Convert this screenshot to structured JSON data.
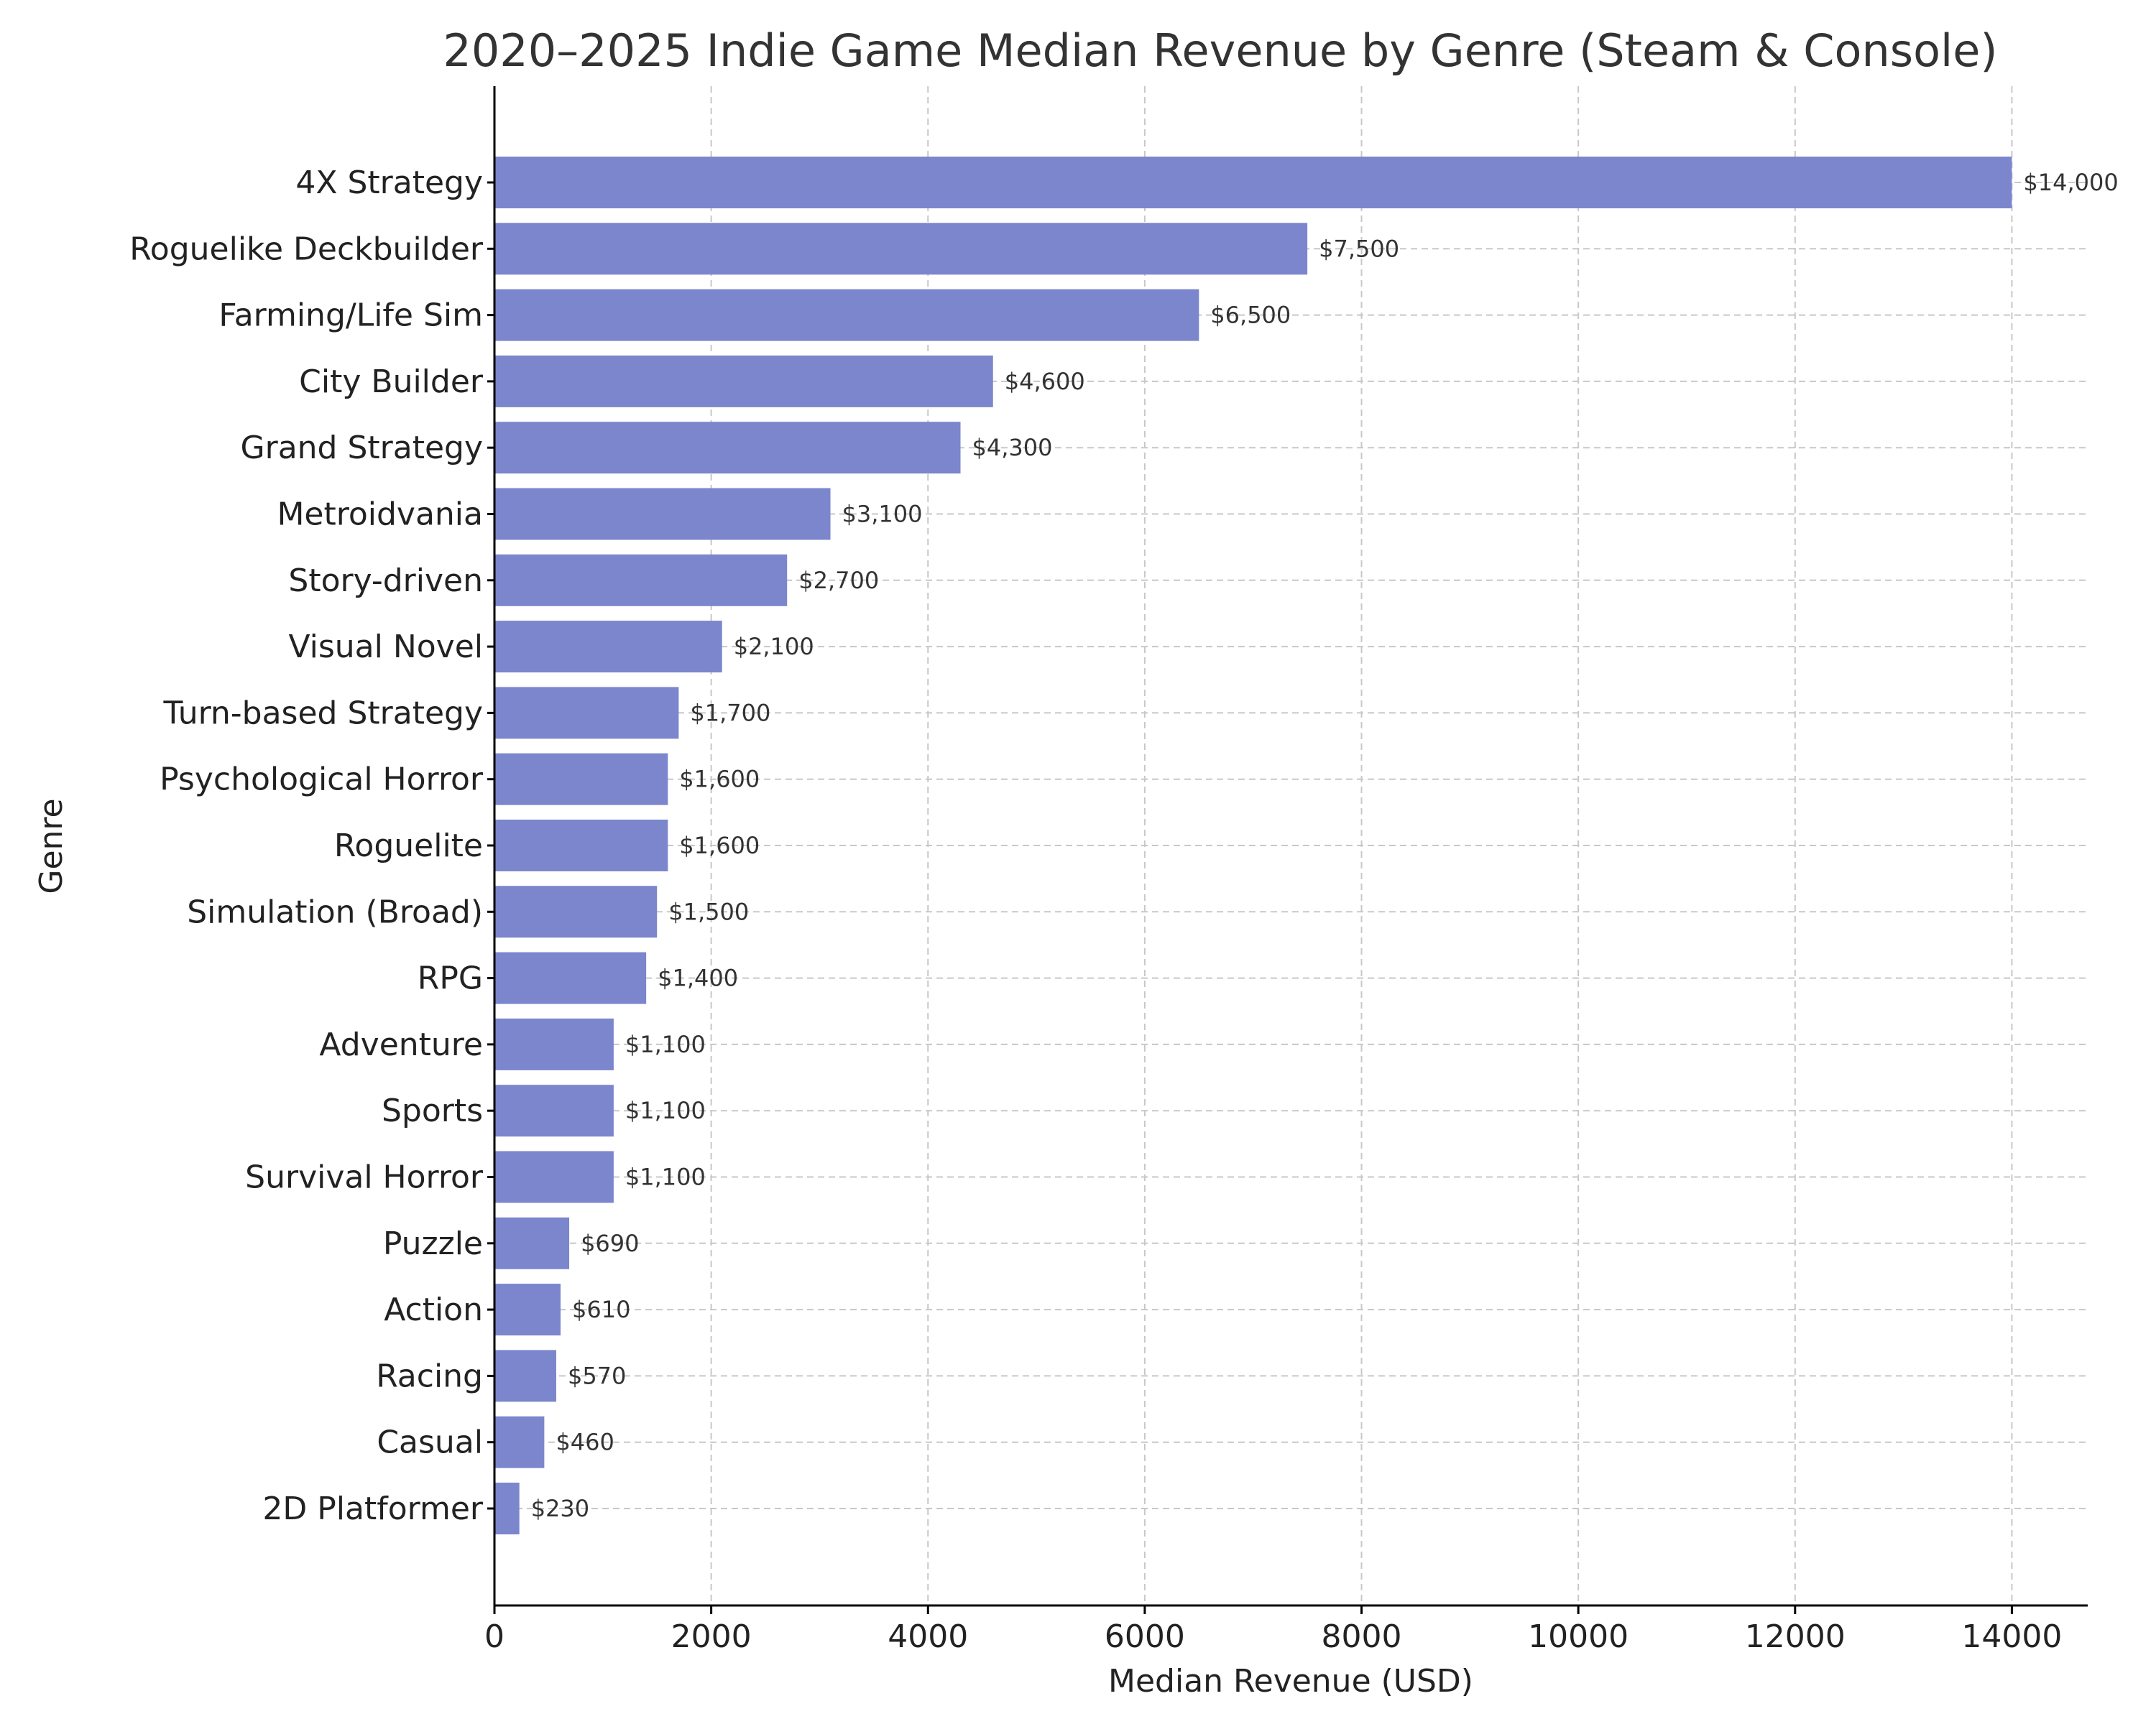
{
  "chart_data": {
    "type": "bar",
    "orientation": "horizontal",
    "title": "2020–2025 Indie Game Median Revenue by Genre (Steam & Console)",
    "xlabel": "Median Revenue (USD)",
    "ylabel": "Genre",
    "xlim": [
      0,
      14700
    ],
    "xticks": [
      0,
      2000,
      4000,
      6000,
      8000,
      10000,
      12000,
      14000
    ],
    "xtick_labels": [
      "0",
      "2000",
      "4000",
      "6000",
      "8000",
      "10000",
      "12000",
      "14000"
    ],
    "grid": true,
    "bar_color": "#7b86cc",
    "categories": [
      "4X Strategy",
      "Roguelike Deckbuilder",
      "Farming/Life Sim",
      "City Builder",
      "Grand Strategy",
      "Metroidvania",
      "Story-driven",
      "Visual Novel",
      "Turn-based Strategy",
      "Psychological Horror",
      "Roguelite",
      "Simulation (Broad)",
      "RPG",
      "Adventure",
      "Sports",
      "Survival Horror",
      "Puzzle",
      "Action",
      "Racing",
      "Casual",
      "2D Platformer"
    ],
    "values": [
      14000,
      7500,
      6500,
      4600,
      4300,
      3100,
      2700,
      2100,
      1700,
      1600,
      1600,
      1500,
      1400,
      1100,
      1100,
      1100,
      690,
      610,
      570,
      460,
      230
    ],
    "data_labels": [
      "$14,000",
      "$7,500",
      "$6,500",
      "$4,600",
      "$4,300",
      "$3,100",
      "$2,700",
      "$2,100",
      "$1,700",
      "$1,600",
      "$1,600",
      "$1,500",
      "$1,400",
      "$1,100",
      "$1,100",
      "$1,100",
      "$690",
      "$610",
      "$570",
      "$460",
      "$230"
    ]
  }
}
